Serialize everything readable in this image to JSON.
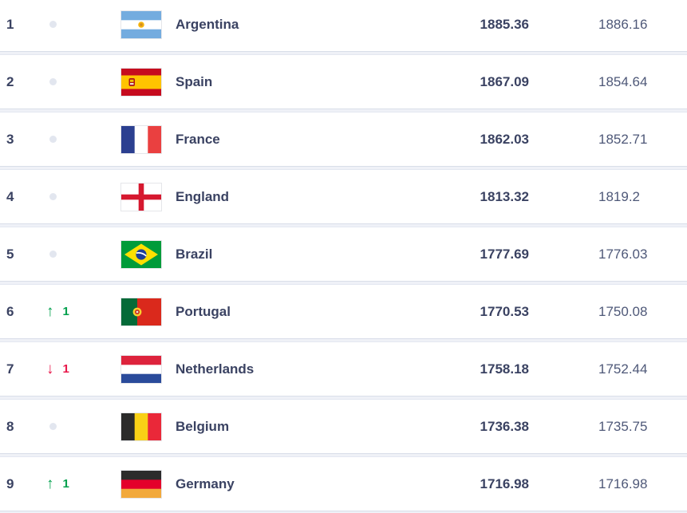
{
  "colors": {
    "page_background": "#eff1f7",
    "row_background": "#ffffff",
    "divider": "#d9dee9",
    "text_primary": "#3a4262",
    "text_secondary": "#4e5878",
    "movement_up": "#00a04d",
    "movement_down": "#e8194b",
    "no_change_dot": "#e2e6ef"
  },
  "icons": {
    "movement_up": "↑",
    "movement_down": "↓",
    "no_change": "dot"
  },
  "ranking": {
    "rows": [
      {
        "rank": "1",
        "movement": "none",
        "movement_value": "",
        "country": "Argentina",
        "flag": "argentina",
        "points": "1885.36",
        "previous_points": "1886.16"
      },
      {
        "rank": "2",
        "movement": "none",
        "movement_value": "",
        "country": "Spain",
        "flag": "spain",
        "points": "1867.09",
        "previous_points": "1854.64"
      },
      {
        "rank": "3",
        "movement": "none",
        "movement_value": "",
        "country": "France",
        "flag": "france",
        "points": "1862.03",
        "previous_points": "1852.71"
      },
      {
        "rank": "4",
        "movement": "none",
        "movement_value": "",
        "country": "England",
        "flag": "england",
        "points": "1813.32",
        "previous_points": "1819.2"
      },
      {
        "rank": "5",
        "movement": "none",
        "movement_value": "",
        "country": "Brazil",
        "flag": "brazil",
        "points": "1777.69",
        "previous_points": "1776.03"
      },
      {
        "rank": "6",
        "movement": "up",
        "movement_value": "1",
        "country": "Portugal",
        "flag": "portugal",
        "points": "1770.53",
        "previous_points": "1750.08"
      },
      {
        "rank": "7",
        "movement": "down",
        "movement_value": "1",
        "country": "Netherlands",
        "flag": "netherlands",
        "points": "1758.18",
        "previous_points": "1752.44"
      },
      {
        "rank": "8",
        "movement": "none",
        "movement_value": "",
        "country": "Belgium",
        "flag": "belgium",
        "points": "1736.38",
        "previous_points": "1735.75"
      },
      {
        "rank": "9",
        "movement": "up",
        "movement_value": "1",
        "country": "Germany",
        "flag": "germany",
        "points": "1716.98",
        "previous_points": "1716.98"
      }
    ]
  }
}
